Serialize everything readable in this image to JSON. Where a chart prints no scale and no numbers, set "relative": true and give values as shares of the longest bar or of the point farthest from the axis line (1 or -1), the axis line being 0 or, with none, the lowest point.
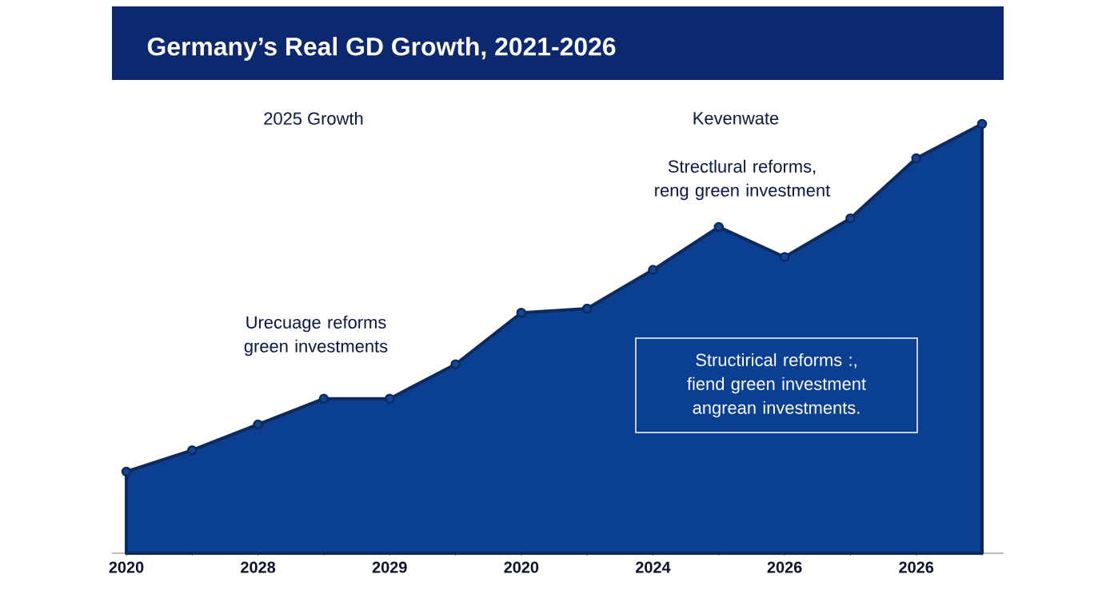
{
  "chart_data": {
    "type": "area",
    "title": "Germany’s Real GD Growth, 2021-2026",
    "relative": true,
    "grid": false,
    "marker": "circle",
    "categories": [
      "2020",
      null,
      "2028",
      null,
      "2029",
      null,
      "2020",
      null,
      "2024",
      null,
      "2026",
      null,
      "2026",
      null
    ],
    "series": [
      {
        "color": "#0a3f91",
        "values": [
          0.19,
          0.24,
          0.3,
          0.36,
          0.36,
          0.44,
          0.56,
          0.57,
          0.66,
          0.76,
          0.69,
          0.78,
          0.92,
          1.0
        ]
      }
    ],
    "annotations": [
      "2025 Growth",
      "Kevenwate",
      "Strectlural reforms, reng green investment",
      "Urecuage reforms green investments",
      "Structirical reforms :, fiend green investment angrean investments."
    ]
  }
}
